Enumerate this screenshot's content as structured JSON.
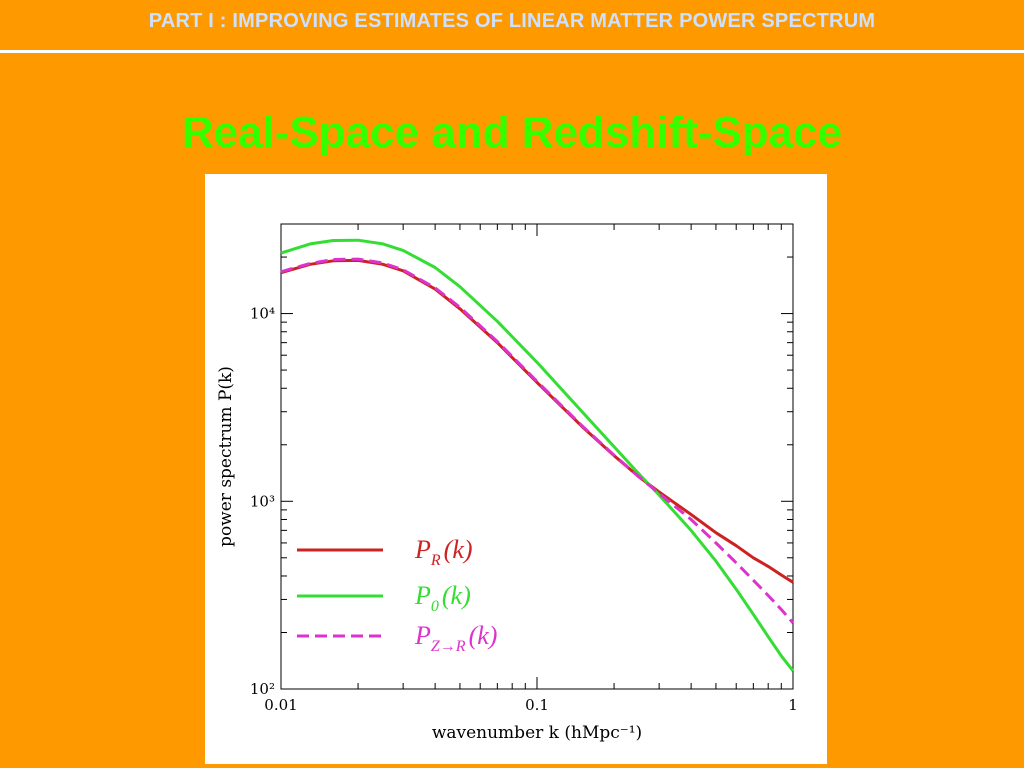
{
  "header": {
    "title": "PART I : IMPROVING ESTIMATES OF LINEAR MATTER POWER SPECTRUM"
  },
  "slide": {
    "title": "Real-Space and Redshift-Space"
  },
  "colors": {
    "background": "#FF9900",
    "header_text": "#CCE0FF",
    "title": "#33FF00",
    "pr": "#CC2222",
    "p0": "#33DD33",
    "pzr": "#DD33CC"
  },
  "chart_data": {
    "type": "line",
    "xlabel": "wavenumber k (hMpc⁻¹)",
    "ylabel": "power spectrum P(k)",
    "xscale": "log",
    "yscale": "log",
    "xlim": [
      0.01,
      1
    ],
    "ylim": [
      100,
      30000
    ],
    "xticks": [
      {
        "value": 0.01,
        "label": "0.01"
      },
      {
        "value": 0.1,
        "label": "0.1"
      },
      {
        "value": 1,
        "label": "1"
      }
    ],
    "yticks": [
      {
        "value": 100,
        "label": "10²"
      },
      {
        "value": 1000,
        "label": "10³"
      },
      {
        "value": 10000,
        "label": "10⁴"
      }
    ],
    "legend_position": "bottom-left",
    "series": [
      {
        "name": "P_R(k)",
        "color": "#CC2222",
        "dash": "solid",
        "legend": {
          "main": "P",
          "sub": "R",
          "arg": "(k)"
        },
        "points": [
          [
            0.01,
            16500
          ],
          [
            0.013,
            18300
          ],
          [
            0.016,
            19100
          ],
          [
            0.02,
            19200
          ],
          [
            0.025,
            18300
          ],
          [
            0.03,
            16900
          ],
          [
            0.04,
            13500
          ],
          [
            0.05,
            10600
          ],
          [
            0.07,
            7000
          ],
          [
            0.1,
            4300
          ],
          [
            0.15,
            2500
          ],
          [
            0.2,
            1750
          ],
          [
            0.25,
            1350
          ],
          [
            0.3,
            1120
          ],
          [
            0.4,
            850
          ],
          [
            0.5,
            680
          ],
          [
            0.6,
            580
          ],
          [
            0.7,
            500
          ],
          [
            0.8,
            450
          ],
          [
            0.9,
            405
          ],
          [
            1.0,
            370
          ]
        ]
      },
      {
        "name": "P_0(k)",
        "color": "#33DD33",
        "dash": "solid",
        "legend": {
          "main": "P",
          "sub": "0",
          "arg": "(k)"
        },
        "points": [
          [
            0.01,
            21000
          ],
          [
            0.013,
            23500
          ],
          [
            0.016,
            24500
          ],
          [
            0.02,
            24600
          ],
          [
            0.025,
            23500
          ],
          [
            0.03,
            21700
          ],
          [
            0.04,
            17600
          ],
          [
            0.05,
            13900
          ],
          [
            0.07,
            9100
          ],
          [
            0.1,
            5500
          ],
          [
            0.15,
            3000
          ],
          [
            0.2,
            1950
          ],
          [
            0.25,
            1400
          ],
          [
            0.3,
            1080
          ],
          [
            0.4,
            700
          ],
          [
            0.5,
            480
          ],
          [
            0.6,
            340
          ],
          [
            0.7,
            250
          ],
          [
            0.8,
            190
          ],
          [
            0.9,
            150
          ],
          [
            1.0,
            125
          ]
        ]
      },
      {
        "name": "P_Z→R(k)",
        "color": "#DD33CC",
        "dash": "dashed",
        "legend": {
          "main": "P",
          "sub": "Z→R",
          "arg": "(k)"
        },
        "points": [
          [
            0.01,
            16700
          ],
          [
            0.013,
            18500
          ],
          [
            0.016,
            19400
          ],
          [
            0.02,
            19500
          ],
          [
            0.025,
            18600
          ],
          [
            0.03,
            17100
          ],
          [
            0.04,
            13700
          ],
          [
            0.05,
            10800
          ],
          [
            0.07,
            7100
          ],
          [
            0.1,
            4350
          ],
          [
            0.15,
            2520
          ],
          [
            0.2,
            1760
          ],
          [
            0.25,
            1350
          ],
          [
            0.3,
            1100
          ],
          [
            0.4,
            800
          ],
          [
            0.5,
            600
          ],
          [
            0.6,
            470
          ],
          [
            0.7,
            380
          ],
          [
            0.8,
            315
          ],
          [
            0.9,
            265
          ],
          [
            1.0,
            225
          ]
        ]
      }
    ]
  }
}
